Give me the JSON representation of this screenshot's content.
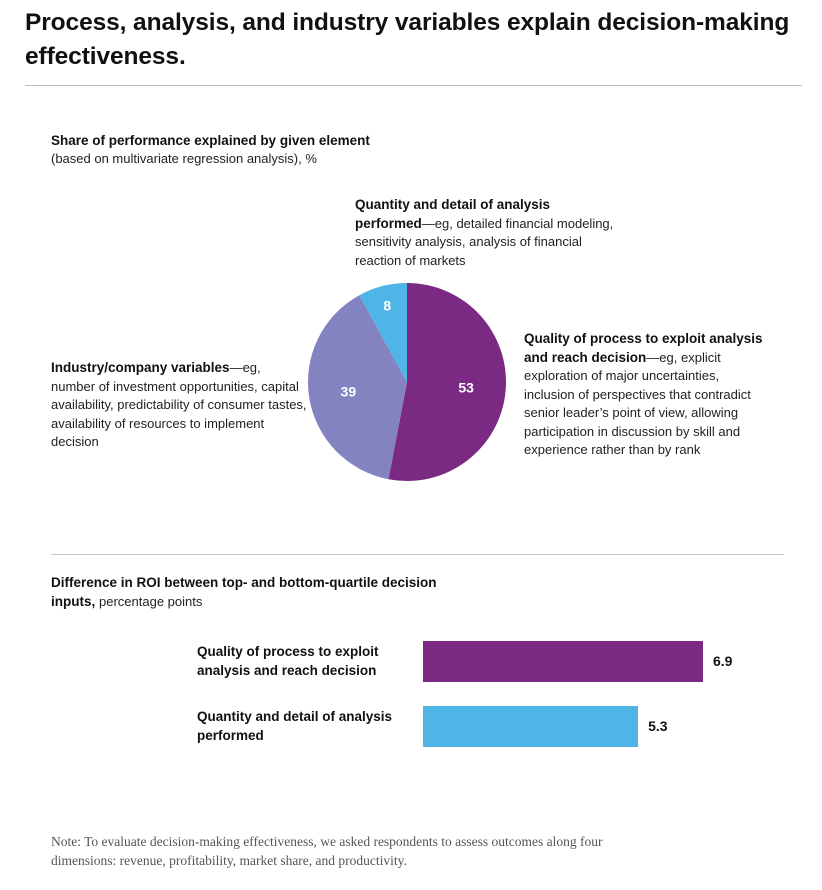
{
  "title": "Process, analysis, and industry variables explain decision-making effectiveness.",
  "pie_section": {
    "heading": "Share of performance explained by given element",
    "subheading": "(based on multivariate regression analysis), %"
  },
  "bar_section": {
    "heading": "Difference in ROI between top- and bottom-quartile decision inputs,",
    "subheading": "percentage points"
  },
  "annotations": {
    "analysis": {
      "bold": "Quantity and detail of analysis performed",
      "text": "—eg, detailed financial modeling, sensitivity analysis, analysis of financial reaction of markets"
    },
    "process": {
      "bold": "Quality of process to exploit analysis and reach decision",
      "text": "—eg, explicit exploration of major uncertainties, inclusion of perspectives that contradict senior leader’s point of view, allowing participation in discussion by skill and experience rather than by rank"
    },
    "industry": {
      "bold": "Industry/company variables",
      "text": "—eg, number of investment opportunities, capital availability, predictability of consumer tastes, availability of resources to implement decision"
    }
  },
  "note": "Note: To evaluate decision-making effectiveness, we asked respondents to assess outcomes along four dimensions: revenue, profitability, market share, and productivity.",
  "colors": {
    "process": "#7b2a84",
    "industry": "#8383c2",
    "analysis": "#4fb4e6"
  },
  "chart_data": [
    {
      "type": "pie",
      "title": "Share of performance explained by given element",
      "unit": "%",
      "slices": [
        {
          "label": "Quality of process to exploit analysis and reach decision",
          "value": 53,
          "color": "#7b2a84"
        },
        {
          "label": "Industry/company variables",
          "value": 39,
          "color": "#8383c2"
        },
        {
          "label": "Quantity and detail of analysis performed",
          "value": 8,
          "color": "#4fb4e6"
        }
      ]
    },
    {
      "type": "bar",
      "orientation": "horizontal",
      "title": "Difference in ROI between top- and bottom-quartile decision inputs, percentage points",
      "categories": [
        "Quality of process to exploit analysis and reach decision",
        "Quantity and detail of analysis performed"
      ],
      "values": [
        6.9,
        5.3
      ],
      "value_labels": [
        "6.9",
        "5.3"
      ],
      "colors": [
        "#7b2a84",
        "#4fb4e6"
      ]
    }
  ]
}
